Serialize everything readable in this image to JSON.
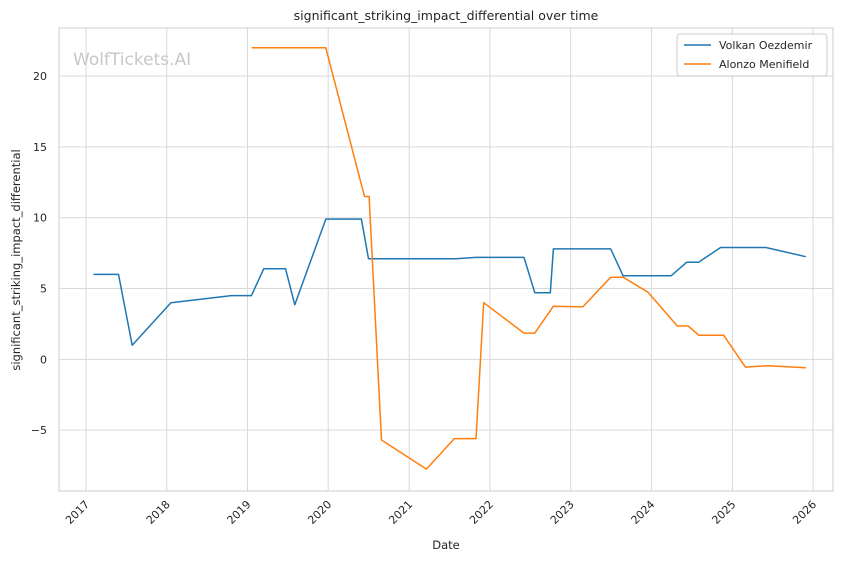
{
  "chart_data": {
    "type": "line",
    "title": "significant_striking_impact_differential over time",
    "xlabel": "Date",
    "ylabel": "significant_striking_impact_differential",
    "watermark": "WolfTickets.AI",
    "x_ticks": [
      "2017",
      "2018",
      "2019",
      "2020",
      "2021",
      "2022",
      "2023",
      "2024",
      "2025",
      "2026"
    ],
    "y_ticks": [
      "−5",
      "0",
      "5",
      "10",
      "15",
      "20"
    ],
    "xlim": [
      "2016-09-01",
      "2026-04-01"
    ],
    "ylim": [
      -9.3,
      23.4
    ],
    "grid": true,
    "legend_position": "top-right",
    "series": [
      {
        "name": "Volkan Oezdemir",
        "color": "#1f77b4",
        "points": [
          [
            "2017-02-04",
            6.0
          ],
          [
            "2017-05-28",
            6.0
          ],
          [
            "2017-07-29",
            1.0
          ],
          [
            "2018-01-20",
            4.0
          ],
          [
            "2018-10-20",
            4.5
          ],
          [
            "2019-01-19",
            4.5
          ],
          [
            "2019-03-16",
            6.4
          ],
          [
            "2019-06-22",
            6.4
          ],
          [
            "2019-08-03",
            3.85
          ],
          [
            "2019-12-21",
            9.9
          ],
          [
            "2020-05-30",
            9.9
          ],
          [
            "2020-07-01",
            7.1
          ],
          [
            "2021-08-01",
            7.1
          ],
          [
            "2021-10-30",
            7.2
          ],
          [
            "2022-06-04",
            7.2
          ],
          [
            "2022-07-23",
            4.7
          ],
          [
            "2022-10-01",
            4.7
          ],
          [
            "2022-10-15",
            7.8
          ],
          [
            "2023-07-01",
            7.8
          ],
          [
            "2023-08-26",
            5.9
          ],
          [
            "2024-03-30",
            5.9
          ],
          [
            "2024-06-08",
            6.85
          ],
          [
            "2024-08-01",
            6.85
          ],
          [
            "2024-11-09",
            7.9
          ],
          [
            "2025-06-01",
            7.9
          ],
          [
            "2025-11-29",
            7.25
          ]
        ]
      },
      {
        "name": "Alonzo Menifield",
        "color": "#ff7f0e",
        "points": [
          [
            "2019-01-20",
            22.0
          ],
          [
            "2019-12-21",
            22.0
          ],
          [
            "2020-06-13",
            11.5
          ],
          [
            "2020-07-04",
            11.5
          ],
          [
            "2020-08-29",
            -5.7
          ],
          [
            "2021-03-20",
            -7.75
          ],
          [
            "2021-07-24",
            -5.6
          ],
          [
            "2021-10-30",
            -5.6
          ],
          [
            "2021-12-04",
            4.0
          ],
          [
            "2022-06-04",
            1.85
          ],
          [
            "2022-07-23",
            1.85
          ],
          [
            "2022-10-15",
            3.75
          ],
          [
            "2023-02-25",
            3.7
          ],
          [
            "2023-07-01",
            5.8
          ],
          [
            "2023-08-26",
            5.8
          ],
          [
            "2023-12-16",
            4.75
          ],
          [
            "2024-04-27",
            2.35
          ],
          [
            "2024-06-15",
            2.35
          ],
          [
            "2024-08-03",
            1.7
          ],
          [
            "2024-11-23",
            1.7
          ],
          [
            "2025-03-01",
            -0.55
          ],
          [
            "2025-06-14",
            -0.45
          ],
          [
            "2025-11-29",
            -0.6
          ]
        ]
      }
    ]
  }
}
